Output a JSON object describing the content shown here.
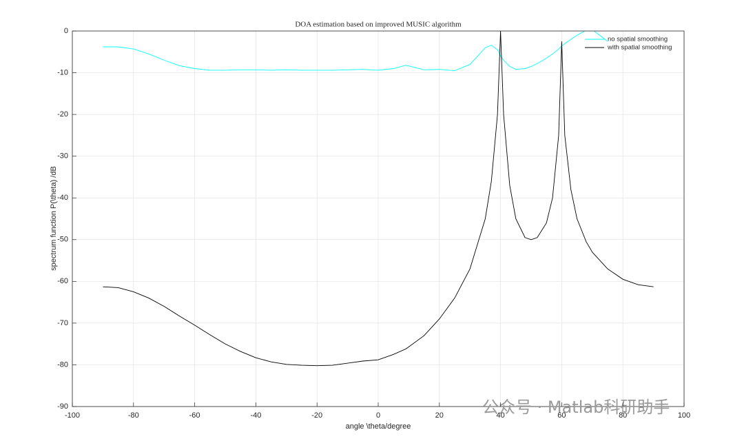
{
  "chart_data": {
    "type": "line",
    "title": "DOA estimation based on improved MUSIC algorithm",
    "x_label": "angle \\theta/degree",
    "y_label": "spectrum function P(\\theta) /dB",
    "x": [
      -90,
      -85,
      -80,
      -75,
      -70,
      -65,
      -60,
      -55,
      -50,
      -45,
      -40,
      -35,
      -30,
      -25,
      -20,
      -15,
      -10,
      -5,
      0,
      5,
      9,
      10,
      15,
      20,
      25,
      30,
      35,
      37,
      39,
      40,
      41,
      43,
      45,
      48,
      50,
      52,
      55,
      57,
      59,
      60,
      61,
      63,
      65,
      68,
      70,
      75,
      80,
      85,
      90
    ],
    "series": [
      {
        "name": "no spatial smoothing",
        "color": "#00ffff",
        "values": [
          -3.8,
          -3.8,
          -4.3,
          -5.5,
          -7,
          -8.3,
          -9,
          -9.4,
          -9.4,
          -9.3,
          -9.3,
          -9.4,
          -9.3,
          -9.4,
          -9.4,
          -9.4,
          -9.3,
          -9.2,
          -9.4,
          -9,
          -8.2,
          -8.4,
          -9.3,
          -9.2,
          -9.5,
          -8,
          -4,
          -3.4,
          -4.5,
          -6,
          -7,
          -8.5,
          -9.2,
          -9,
          -8.5,
          -7.8,
          -6.5,
          -5.5,
          -4.3,
          -3.6,
          -3,
          -2,
          -1,
          0.2,
          0.3,
          -2.5,
          null,
          null,
          null
        ]
      },
      {
        "name": "with spatial smoothing",
        "color": "#000000",
        "values": [
          -61.3,
          -61.5,
          -62.5,
          -64,
          -66,
          -68.3,
          -70.5,
          -72.8,
          -75,
          -76.8,
          -78.3,
          -79.3,
          -79.9,
          -80.1,
          -80.2,
          -80.1,
          -79.6,
          -79.1,
          -78.8,
          -77.5,
          -76.2,
          -75.7,
          -73,
          -69,
          -64,
          -57,
          -45,
          -36,
          -20,
          0,
          -20,
          -37,
          -45,
          -49.5,
          -50,
          -49.5,
          -46,
          -40,
          -25,
          -2.5,
          -25,
          -38,
          -45,
          -50.5,
          -53,
          -57,
          -59.5,
          -60.8,
          -61.3
        ]
      }
    ],
    "xlim": [
      -100,
      100
    ],
    "xticks": [
      -100,
      -80,
      -60,
      -40,
      -20,
      0,
      20,
      40,
      60,
      80,
      100
    ],
    "ylim": [
      -90,
      0
    ],
    "yticks": [
      -90,
      -80,
      -70,
      -60,
      -50,
      -40,
      -30,
      -20,
      -10,
      0
    ],
    "grid": true,
    "legend": "northeast"
  },
  "watermark": "公众号 · Matlab科研助手"
}
